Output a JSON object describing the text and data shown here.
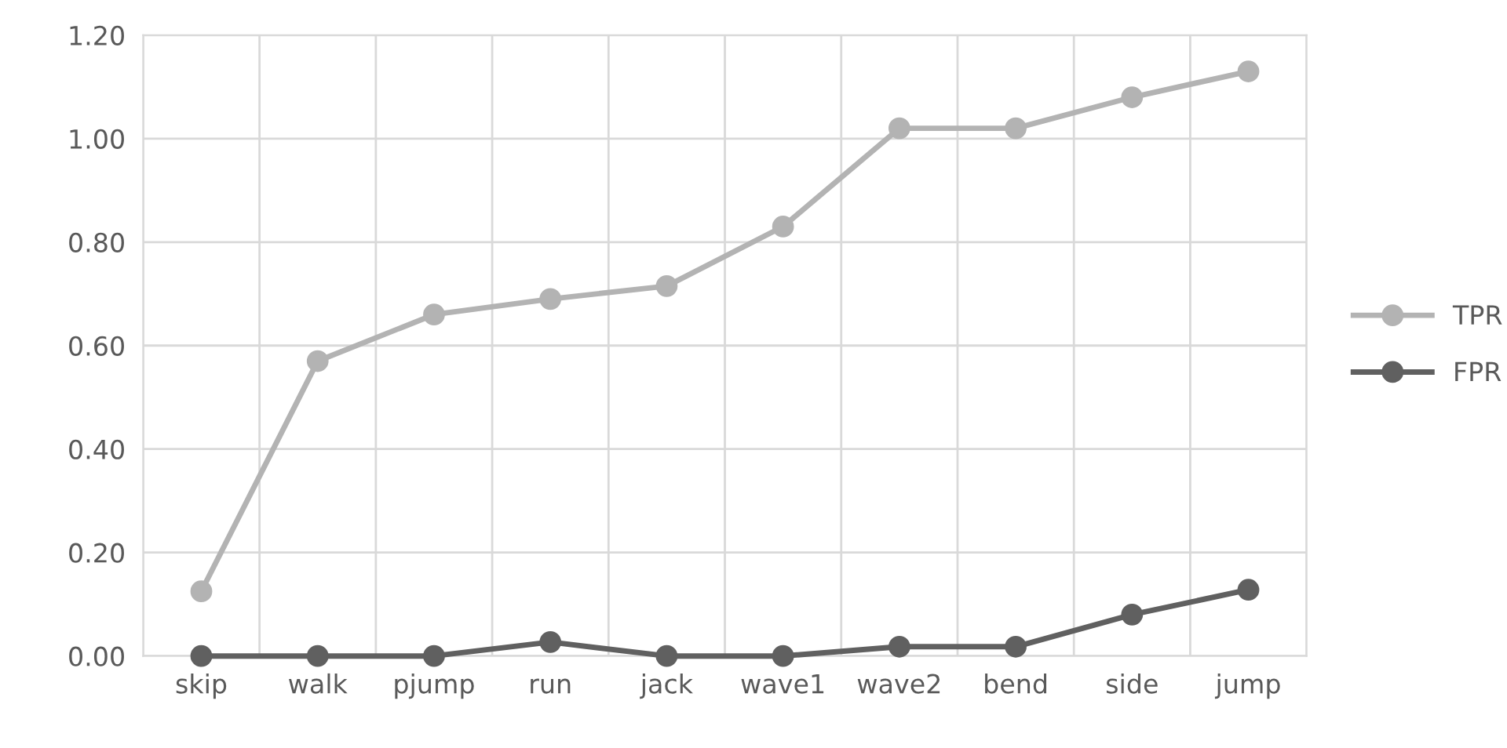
{
  "chart_data": {
    "type": "line",
    "categories": [
      "skip",
      "walk",
      "pjump",
      "run",
      "jack",
      "wave1",
      "wave2",
      "bend",
      "side",
      "jump"
    ],
    "series": [
      {
        "name": "TPR",
        "color": "#b3b3b3",
        "values": [
          0.125,
          0.57,
          0.66,
          0.69,
          0.715,
          0.83,
          1.02,
          1.02,
          1.08,
          1.13
        ]
      },
      {
        "name": "FPR",
        "color": "#606060",
        "values": [
          0,
          0,
          0,
          0.027,
          0,
          0,
          0.018,
          0.018,
          0.08,
          0.128
        ]
      }
    ],
    "ylim": [
      0,
      1.2
    ],
    "yticks": [
      {
        "value": 0,
        "label": "0.00"
      },
      {
        "value": 0.2,
        "label": "0.20"
      },
      {
        "value": 0.4,
        "label": "0.40"
      },
      {
        "value": 0.6,
        "label": "0.60"
      },
      {
        "value": 0.8,
        "label": "0.80"
      },
      {
        "value": 1.0,
        "label": "1.00"
      },
      {
        "value": 1.2,
        "label": "1.20"
      }
    ],
    "grid": true,
    "legend": "right",
    "marker": "circle",
    "line_style": "solid"
  }
}
